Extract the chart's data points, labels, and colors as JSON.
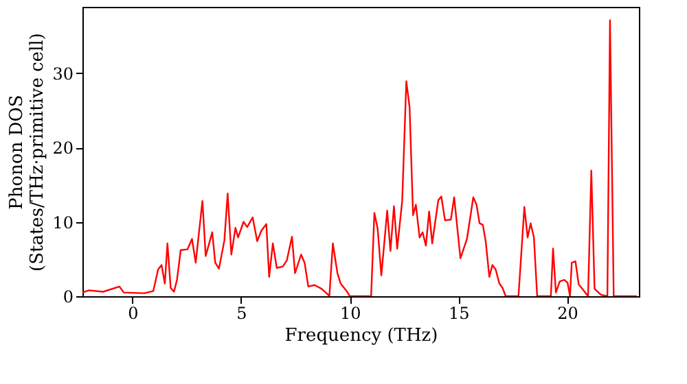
{
  "chart_data": {
    "type": "line",
    "xlabel": "Frequency (THz)",
    "ylabel": "Phonon DOS\n(States/THz·primitive cell)",
    "xlim": [
      -2.3,
      23.3
    ],
    "xticks": [
      0,
      5,
      10,
      15,
      20
    ],
    "ylim": [
      0,
      38.9
    ],
    "yticks": [
      0,
      10,
      20,
      30
    ],
    "grid": false,
    "marker": "none",
    "line_style": "solid",
    "series": [
      {
        "color": "#ff0000",
        "x": [
          -2.3,
          -2.0,
          -1.35,
          -0.6,
          -0.4,
          0.55,
          0.96,
          1.18,
          1.34,
          1.49,
          1.61,
          1.76,
          1.91,
          2.05,
          2.22,
          2.53,
          2.74,
          2.91,
          3.22,
          3.37,
          3.67,
          3.81,
          3.98,
          4.23,
          4.38,
          4.55,
          4.74,
          4.86,
          5.11,
          5.28,
          5.53,
          5.74,
          5.93,
          6.16,
          6.29,
          6.46,
          6.64,
          6.92,
          7.1,
          7.34,
          7.48,
          7.76,
          7.92,
          8.09,
          8.38,
          8.7,
          9.06,
          9.22,
          9.43,
          9.58,
          9.9,
          10.0,
          10.98,
          11.13,
          11.28,
          11.45,
          11.72,
          11.87,
          12.03,
          12.18,
          12.41,
          12.6,
          12.75,
          12.91,
          13.04,
          13.21,
          13.35,
          13.5,
          13.65,
          13.79,
          14.07,
          14.21,
          14.38,
          14.65,
          14.8,
          15.09,
          15.39,
          15.68,
          15.83,
          15.97,
          16.12,
          16.25,
          16.42,
          16.56,
          16.71,
          16.88,
          17.03,
          17.17,
          17.76,
          18.03,
          18.18,
          18.32,
          18.47,
          18.62,
          19.25,
          19.35,
          19.48,
          19.66,
          19.87,
          20.02,
          20.13,
          20.21,
          20.38,
          20.53,
          20.75,
          20.96,
          21.11,
          21.26,
          21.55,
          21.85,
          21.97,
          22.14,
          23.2
        ],
        "values": [
          0.5,
          0.8,
          0.6,
          1.3,
          0.5,
          0.4,
          0.7,
          3.6,
          4.2,
          1.7,
          7.1,
          1.1,
          0.6,
          2.2,
          6.2,
          6.3,
          7.7,
          4.5,
          12.8,
          5.4,
          8.6,
          4.5,
          3.7,
          7.5,
          13.8,
          5.6,
          9.2,
          7.9,
          10.0,
          9.3,
          10.6,
          7.4,
          8.8,
          9.7,
          2.6,
          7.1,
          3.8,
          4.0,
          4.8,
          8.0,
          3.1,
          5.6,
          4.5,
          1.3,
          1.5,
          1.0,
          0.05,
          7.1,
          3.1,
          1.7,
          0.5,
          0,
          0,
          11.2,
          9.1,
          2.8,
          11.5,
          6.1,
          12.1,
          6.4,
          12.8,
          28.9,
          25.4,
          10.9,
          12.3,
          7.9,
          8.6,
          6.8,
          11.4,
          7.1,
          12.9,
          13.4,
          10.2,
          10.3,
          13.3,
          5.1,
          7.7,
          13.3,
          12.3,
          9.8,
          9.6,
          7.4,
          2.6,
          4.2,
          3.6,
          1.7,
          1.1,
          0,
          0,
          12.0,
          7.9,
          9.8,
          7.9,
          0,
          0,
          6.4,
          0.5,
          2.0,
          2.2,
          1.8,
          0,
          4.5,
          4.7,
          1.6,
          0.8,
          0,
          16.9,
          1.0,
          0.2,
          0,
          37.1,
          0,
          0
        ]
      }
    ]
  }
}
